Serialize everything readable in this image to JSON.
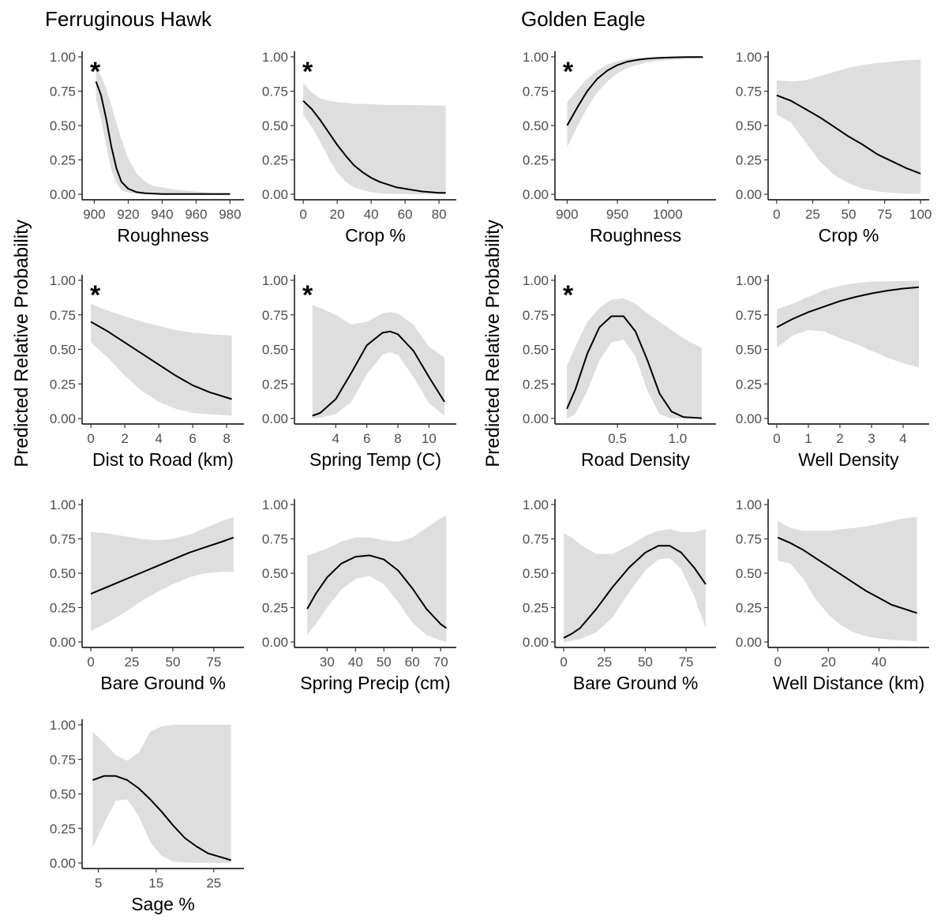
{
  "figure": {
    "y_axis_label": "Predicted Relative Probability",
    "significance_marker": "*"
  },
  "groups": [
    {
      "title": "Ferruginous Hawk"
    },
    {
      "title": "Golden Eagle"
    }
  ],
  "chart_data": [
    {
      "type": "line",
      "group": "Ferruginous Hawk",
      "xlabel": "Roughness",
      "significant": true,
      "xlim": [
        897,
        984
      ],
      "ylim": [
        0,
        1
      ],
      "xticks": [
        "900",
        "920",
        "940",
        "960",
        "980"
      ],
      "xtick_values": [
        900,
        920,
        940,
        960,
        980
      ],
      "yticks": [
        "0.00",
        "0.25",
        "0.50",
        "0.75",
        "1.00"
      ],
      "ytick_values": [
        0,
        0.25,
        0.5,
        0.75,
        1.0
      ],
      "x": [
        901,
        904,
        907,
        910,
        913,
        916,
        920,
        925,
        930,
        935,
        940,
        950,
        960,
        970,
        980
      ],
      "y": [
        0.82,
        0.72,
        0.55,
        0.35,
        0.19,
        0.09,
        0.04,
        0.015,
        0.007,
        0.004,
        0.002,
        0.001,
        0.001,
        0.001,
        0.001
      ],
      "lower": [
        0.69,
        0.55,
        0.35,
        0.18,
        0.08,
        0.03,
        0.01,
        0.003,
        0.001,
        0,
        0,
        0,
        0,
        0,
        0
      ],
      "upper": [
        0.93,
        0.86,
        0.77,
        0.65,
        0.52,
        0.4,
        0.26,
        0.15,
        0.09,
        0.06,
        0.05,
        0.03,
        0.02,
        0.01,
        0.01
      ]
    },
    {
      "type": "line",
      "group": "Ferruginous Hawk",
      "xlabel": "Crop %",
      "significant": true,
      "xlim": [
        -1,
        86
      ],
      "ylim": [
        0,
        1
      ],
      "xticks": [
        "0",
        "20",
        "40",
        "60",
        "80"
      ],
      "xtick_values": [
        0,
        20,
        40,
        60,
        80
      ],
      "yticks": [
        "0.00",
        "0.25",
        "0.50",
        "0.75",
        "1.00"
      ],
      "ytick_values": [
        0,
        0.25,
        0.5,
        0.75,
        1.0
      ],
      "x": [
        0,
        5,
        10,
        15,
        20,
        25,
        30,
        35,
        40,
        45,
        50,
        55,
        60,
        65,
        70,
        75,
        80,
        84
      ],
      "y": [
        0.68,
        0.62,
        0.54,
        0.45,
        0.36,
        0.28,
        0.21,
        0.16,
        0.12,
        0.09,
        0.07,
        0.05,
        0.04,
        0.03,
        0.02,
        0.015,
        0.01,
        0.01
      ],
      "lower": [
        0.58,
        0.49,
        0.38,
        0.26,
        0.16,
        0.09,
        0.05,
        0.03,
        0.015,
        0.008,
        0.004,
        0.002,
        0.001,
        0,
        0,
        0,
        0,
        0
      ],
      "upper": [
        0.81,
        0.74,
        0.7,
        0.68,
        0.67,
        0.665,
        0.66,
        0.658,
        0.655,
        0.652,
        0.65,
        0.65,
        0.65,
        0.648,
        0.647,
        0.646,
        0.645,
        0.645
      ]
    },
    {
      "type": "line",
      "group": "Golden Eagle",
      "xlabel": "Roughness",
      "significant": true,
      "xlim": [
        895,
        1041
      ],
      "ylim": [
        0,
        1
      ],
      "xticks": [
        "900",
        "950",
        "1000"
      ],
      "xtick_values": [
        900,
        950,
        1000
      ],
      "yticks": [
        "0.00",
        "0.25",
        "0.50",
        "0.75",
        "1.00"
      ],
      "ytick_values": [
        0,
        0.25,
        0.5,
        0.75,
        1.0
      ],
      "x": [
        900,
        910,
        920,
        930,
        940,
        950,
        960,
        970,
        980,
        990,
        1000,
        1010,
        1020,
        1035
      ],
      "y": [
        0.5,
        0.63,
        0.75,
        0.84,
        0.9,
        0.94,
        0.965,
        0.978,
        0.987,
        0.992,
        0.995,
        0.997,
        0.998,
        0.999
      ],
      "lower": [
        0.34,
        0.49,
        0.63,
        0.74,
        0.82,
        0.88,
        0.92,
        0.94,
        0.96,
        0.97,
        0.975,
        0.98,
        0.985,
        0.99
      ],
      "upper": [
        0.67,
        0.76,
        0.84,
        0.9,
        0.945,
        0.97,
        0.985,
        0.992,
        0.995,
        0.997,
        0.998,
        0.999,
        1.0,
        1.0
      ]
    },
    {
      "type": "line",
      "group": "Golden Eagle",
      "xlabel": "Crop %",
      "significant": false,
      "xlim": [
        -1,
        101
      ],
      "ylim": [
        0,
        1
      ],
      "xticks": [
        "0",
        "25",
        "50",
        "75",
        "100"
      ],
      "xtick_values": [
        0,
        25,
        50,
        75,
        100
      ],
      "yticks": [
        "0.00",
        "0.25",
        "0.50",
        "0.75",
        "1.00"
      ],
      "ytick_values": [
        0,
        0.25,
        0.5,
        0.75,
        1.0
      ],
      "x": [
        0,
        10,
        20,
        30,
        40,
        50,
        60,
        70,
        80,
        90,
        100
      ],
      "y": [
        0.72,
        0.68,
        0.62,
        0.56,
        0.49,
        0.42,
        0.36,
        0.29,
        0.24,
        0.19,
        0.15
      ],
      "lower": [
        0.58,
        0.52,
        0.38,
        0.24,
        0.14,
        0.08,
        0.04,
        0.02,
        0.01,
        0.005,
        0.003
      ],
      "upper": [
        0.83,
        0.82,
        0.83,
        0.86,
        0.89,
        0.92,
        0.94,
        0.955,
        0.965,
        0.975,
        0.98
      ]
    },
    {
      "type": "line",
      "group": "Ferruginous Hawk",
      "xlabel": "Dist to Road (km)",
      "significant": true,
      "xlim": [
        -0.1,
        8.6
      ],
      "ylim": [
        0,
        1
      ],
      "xticks": [
        "0",
        "2",
        "4",
        "6",
        "8"
      ],
      "xtick_values": [
        0,
        2,
        4,
        6,
        8
      ],
      "yticks": [
        "0.00",
        "0.25",
        "0.50",
        "0.75",
        "1.00"
      ],
      "ytick_values": [
        0,
        0.25,
        0.5,
        0.75,
        1.0
      ],
      "x": [
        0,
        1,
        2,
        3,
        4,
        5,
        6,
        7,
        8.3
      ],
      "y": [
        0.7,
        0.63,
        0.55,
        0.47,
        0.39,
        0.31,
        0.24,
        0.19,
        0.14
      ],
      "lower": [
        0.55,
        0.44,
        0.31,
        0.2,
        0.12,
        0.07,
        0.04,
        0.03,
        0.02
      ],
      "upper": [
        0.83,
        0.78,
        0.74,
        0.7,
        0.67,
        0.64,
        0.62,
        0.61,
        0.6
      ]
    },
    {
      "type": "line",
      "group": "Ferruginous Hawk",
      "xlabel": "Spring Temp (C)",
      "significant": true,
      "xlim": [
        1.8,
        11.3
      ],
      "ylim": [
        0,
        1
      ],
      "xticks": [
        "4",
        "6",
        "8",
        "10"
      ],
      "xtick_values": [
        4,
        6,
        8,
        10
      ],
      "yticks": [
        "0.00",
        "0.25",
        "0.50",
        "0.75",
        "1.00"
      ],
      "ytick_values": [
        0,
        0.25,
        0.5,
        0.75,
        1.0
      ],
      "x": [
        2.5,
        3,
        4,
        5,
        6,
        7,
        7.5,
        8,
        9,
        10,
        11
      ],
      "y": [
        0.02,
        0.04,
        0.14,
        0.33,
        0.53,
        0.62,
        0.63,
        0.61,
        0.49,
        0.3,
        0.12
      ],
      "lower": [
        0,
        0.005,
        0.03,
        0.12,
        0.32,
        0.46,
        0.48,
        0.46,
        0.3,
        0.11,
        0.02
      ],
      "upper": [
        0.82,
        0.8,
        0.75,
        0.68,
        0.7,
        0.76,
        0.77,
        0.76,
        0.68,
        0.52,
        0.44
      ]
    },
    {
      "type": "line",
      "group": "Golden Eagle",
      "xlabel": "Road Density",
      "significant": true,
      "xlim": [
        0.04,
        1.26
      ],
      "ylim": [
        0,
        1
      ],
      "xticks": [
        "0.5",
        "1.0"
      ],
      "xtick_values": [
        0.5,
        1.0
      ],
      "yticks": [
        "0.00",
        "0.25",
        "0.50",
        "0.75",
        "1.00"
      ],
      "ytick_values": [
        0,
        0.25,
        0.5,
        0.75,
        1.0
      ],
      "x": [
        0.08,
        0.15,
        0.25,
        0.35,
        0.45,
        0.55,
        0.65,
        0.75,
        0.85,
        0.95,
        1.05,
        1.2
      ],
      "y": [
        0.07,
        0.21,
        0.47,
        0.66,
        0.74,
        0.74,
        0.63,
        0.42,
        0.18,
        0.05,
        0.01,
        0.002
      ],
      "lower": [
        0,
        0.03,
        0.2,
        0.42,
        0.55,
        0.57,
        0.45,
        0.2,
        0.03,
        0,
        0,
        0
      ],
      "upper": [
        0.38,
        0.52,
        0.7,
        0.8,
        0.86,
        0.87,
        0.83,
        0.76,
        0.7,
        0.64,
        0.58,
        0.51
      ]
    },
    {
      "type": "line",
      "group": "Golden Eagle",
      "xlabel": "Well Density",
      "significant": false,
      "xlim": [
        -0.05,
        4.6
      ],
      "ylim": [
        0,
        1
      ],
      "xticks": [
        "0",
        "1",
        "2",
        "3",
        "4"
      ],
      "xtick_values": [
        0,
        1,
        2,
        3,
        4
      ],
      "yticks": [
        "0.00",
        "0.25",
        "0.50",
        "0.75",
        "1.00"
      ],
      "ytick_values": [
        0,
        0.25,
        0.5,
        0.75,
        1.0
      ],
      "x": [
        0,
        0.5,
        1,
        1.5,
        2,
        2.5,
        3,
        3.5,
        4,
        4.5
      ],
      "y": [
        0.66,
        0.72,
        0.77,
        0.81,
        0.85,
        0.88,
        0.905,
        0.925,
        0.94,
        0.95
      ],
      "lower": [
        0.51,
        0.6,
        0.64,
        0.63,
        0.58,
        0.54,
        0.49,
        0.44,
        0.4,
        0.37
      ],
      "upper": [
        0.79,
        0.83,
        0.88,
        0.93,
        0.96,
        0.98,
        0.99,
        0.993,
        0.995,
        0.997
      ]
    },
    {
      "type": "line",
      "group": "Ferruginous Hawk",
      "xlabel": "Bare Ground %",
      "significant": false,
      "xlim": [
        -1,
        89
      ],
      "ylim": [
        0,
        1
      ],
      "xticks": [
        "0",
        "25",
        "50",
        "75"
      ],
      "xtick_values": [
        0,
        25,
        50,
        75
      ],
      "yticks": [
        "0.00",
        "0.25",
        "0.50",
        "0.75",
        "1.00"
      ],
      "ytick_values": [
        0,
        0.25,
        0.5,
        0.75,
        1.0
      ],
      "x": [
        0,
        10,
        20,
        30,
        40,
        50,
        60,
        70,
        80,
        87
      ],
      "y": [
        0.35,
        0.4,
        0.45,
        0.5,
        0.55,
        0.6,
        0.65,
        0.69,
        0.73,
        0.76
      ],
      "lower": [
        0.08,
        0.14,
        0.21,
        0.29,
        0.36,
        0.42,
        0.47,
        0.5,
        0.51,
        0.51
      ],
      "upper": [
        0.8,
        0.79,
        0.77,
        0.75,
        0.74,
        0.75,
        0.78,
        0.83,
        0.88,
        0.91
      ]
    },
    {
      "type": "line",
      "group": "Ferruginous Hawk",
      "xlabel": "Spring Precip (cm)",
      "significant": false,
      "xlim": [
        21,
        73
      ],
      "ylim": [
        0,
        1
      ],
      "xticks": [
        "30",
        "40",
        "50",
        "60",
        "70"
      ],
      "xtick_values": [
        30,
        40,
        50,
        60,
        70
      ],
      "yticks": [
        "0.00",
        "0.25",
        "0.50",
        "0.75",
        "1.00"
      ],
      "ytick_values": [
        0,
        0.25,
        0.5,
        0.75,
        1.0
      ],
      "x": [
        23,
        26,
        30,
        35,
        40,
        45,
        50,
        55,
        60,
        65,
        70,
        72
      ],
      "y": [
        0.24,
        0.35,
        0.47,
        0.57,
        0.62,
        0.63,
        0.6,
        0.52,
        0.39,
        0.24,
        0.13,
        0.1
      ],
      "lower": [
        0.05,
        0.13,
        0.25,
        0.38,
        0.46,
        0.48,
        0.42,
        0.29,
        0.14,
        0.05,
        0.01,
        0
      ],
      "upper": [
        0.63,
        0.65,
        0.68,
        0.73,
        0.76,
        0.76,
        0.74,
        0.73,
        0.76,
        0.83,
        0.9,
        0.92
      ]
    },
    {
      "type": "line",
      "group": "Golden Eagle",
      "xlabel": "Bare Ground %",
      "significant": false,
      "xlim": [
        -1,
        89
      ],
      "ylim": [
        0,
        1
      ],
      "xticks": [
        "0",
        "25",
        "50",
        "75"
      ],
      "xtick_values": [
        0,
        25,
        50,
        75
      ],
      "yticks": [
        "0.00",
        "0.25",
        "0.50",
        "0.75",
        "1.00"
      ],
      "ytick_values": [
        0,
        0.25,
        0.5,
        0.75,
        1.0
      ],
      "x": [
        0,
        5,
        10,
        20,
        30,
        40,
        50,
        58,
        65,
        72,
        80,
        87
      ],
      "y": [
        0.03,
        0.06,
        0.1,
        0.24,
        0.4,
        0.54,
        0.65,
        0.7,
        0.7,
        0.65,
        0.54,
        0.42
      ],
      "lower": [
        0,
        0.01,
        0.02,
        0.07,
        0.18,
        0.36,
        0.52,
        0.6,
        0.61,
        0.53,
        0.33,
        0.1
      ],
      "upper": [
        0.79,
        0.76,
        0.71,
        0.64,
        0.64,
        0.7,
        0.77,
        0.81,
        0.82,
        0.8,
        0.8,
        0.82
      ]
    },
    {
      "type": "line",
      "group": "Golden Eagle",
      "xlabel": "Well Distance (km)",
      "significant": false,
      "xlim": [
        -1,
        57
      ],
      "ylim": [
        0,
        1
      ],
      "xticks": [
        "0",
        "20",
        "40"
      ],
      "xtick_values": [
        0,
        20,
        40
      ],
      "yticks": [
        "0.00",
        "0.25",
        "0.50",
        "0.75",
        "1.00"
      ],
      "ytick_values": [
        0,
        0.25,
        0.5,
        0.75,
        1.0
      ],
      "x": [
        0,
        5,
        10,
        15,
        20,
        25,
        30,
        35,
        40,
        45,
        50,
        55
      ],
      "y": [
        0.76,
        0.72,
        0.67,
        0.61,
        0.55,
        0.49,
        0.43,
        0.37,
        0.32,
        0.27,
        0.24,
        0.21
      ],
      "lower": [
        0.59,
        0.57,
        0.46,
        0.31,
        0.2,
        0.12,
        0.07,
        0.04,
        0.025,
        0.015,
        0.01,
        0.005
      ],
      "upper": [
        0.88,
        0.83,
        0.81,
        0.81,
        0.81,
        0.82,
        0.83,
        0.84,
        0.86,
        0.88,
        0.9,
        0.91
      ]
    },
    {
      "type": "line",
      "group": "Ferruginous Hawk",
      "xlabel": "Sage %",
      "significant": false,
      "xlim": [
        3.4,
        29
      ],
      "ylim": [
        0,
        1
      ],
      "xticks": [
        "5",
        "15",
        "25"
      ],
      "xtick_values": [
        5,
        15,
        25
      ],
      "yticks": [
        "0.00",
        "0.25",
        "0.50",
        "0.75",
        "1.00"
      ],
      "ytick_values": [
        0,
        0.25,
        0.5,
        0.75,
        1.0
      ],
      "x": [
        4,
        6,
        8,
        10,
        12,
        14,
        16,
        18,
        20,
        22,
        24,
        26,
        28
      ],
      "y": [
        0.6,
        0.63,
        0.63,
        0.6,
        0.54,
        0.46,
        0.37,
        0.27,
        0.18,
        0.12,
        0.07,
        0.045,
        0.02
      ],
      "lower": [
        0.11,
        0.29,
        0.45,
        0.46,
        0.34,
        0.15,
        0.05,
        0.01,
        0.003,
        0.001,
        0.001,
        0,
        0
      ],
      "upper": [
        0.95,
        0.87,
        0.78,
        0.74,
        0.8,
        0.95,
        0.99,
        1.0,
        1.0,
        1.0,
        1.0,
        1.0,
        1.0
      ]
    }
  ]
}
